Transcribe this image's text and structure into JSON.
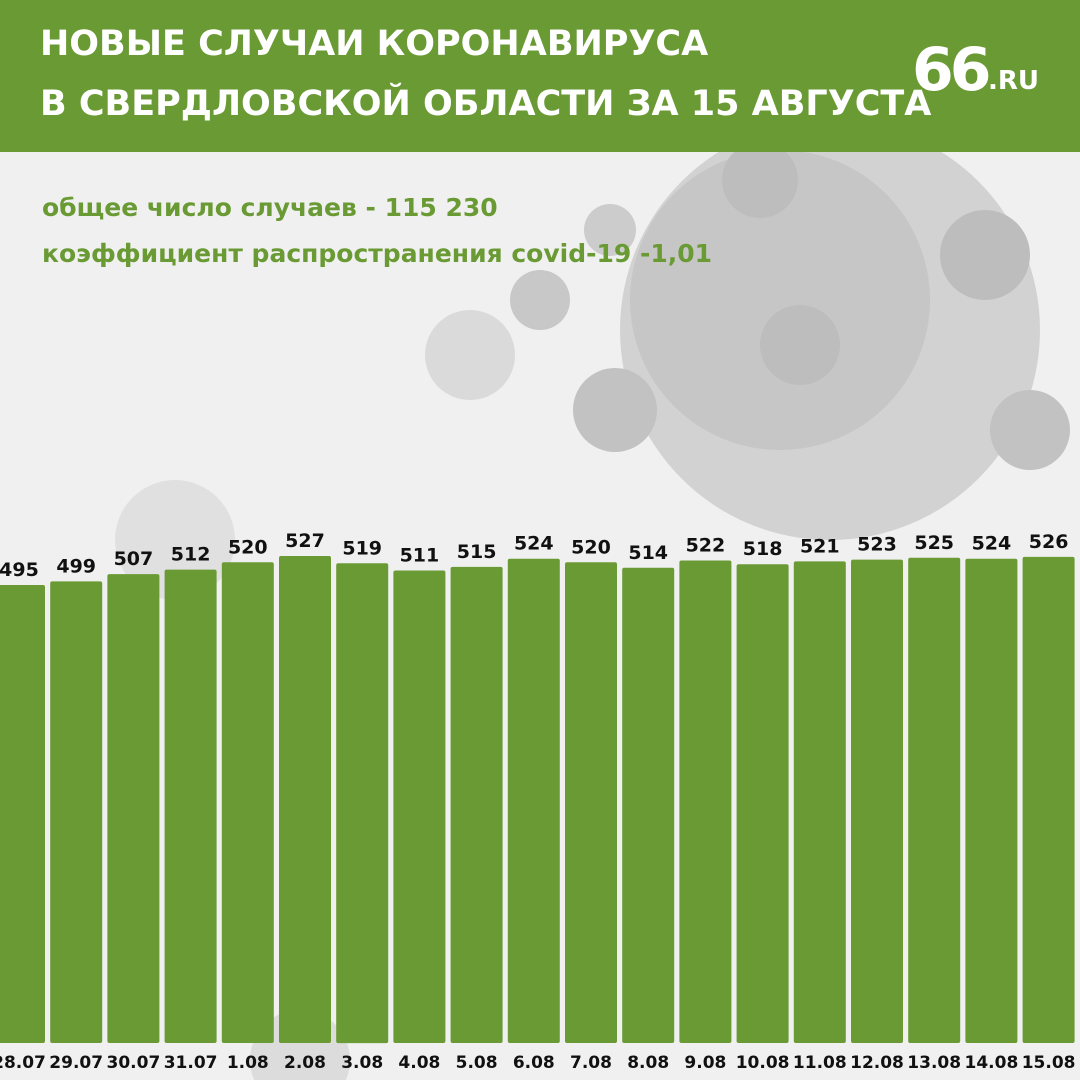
{
  "header": {
    "title_line1": "НОВЫЕ СЛУЧАИ КОРОНАВИРУСА",
    "title_line2": "В СВЕРДЛОВСКОЙ ОБЛАСТИ ЗА 15 АВГУСТА",
    "logo_number": "66",
    "logo_suffix": ".RU"
  },
  "stats": {
    "total_cases": "общее число случаев - 115 230",
    "spread_coefficient": "коэффициент распространения covid-19 -1,01"
  },
  "colors": {
    "brand_green": "#6a9a34",
    "bar_green": "#6a9a34",
    "label_dark": "#111111",
    "background": "#f0f0f0"
  },
  "chart_data": {
    "type": "bar",
    "categories": [
      "28.07",
      "29.07",
      "30.07",
      "31.07",
      "1.08",
      "2.08",
      "3.08",
      "4.08",
      "5.08",
      "6.08",
      "7.08",
      "8.08",
      "9.08",
      "10.08",
      "11.08",
      "12.08",
      "13.08",
      "14.08",
      "15.08"
    ],
    "values": [
      495,
      499,
      507,
      512,
      520,
      527,
      519,
      511,
      515,
      524,
      520,
      514,
      522,
      518,
      521,
      523,
      525,
      524,
      526
    ],
    "data_labels": true,
    "grid": false,
    "legend": "none"
  }
}
